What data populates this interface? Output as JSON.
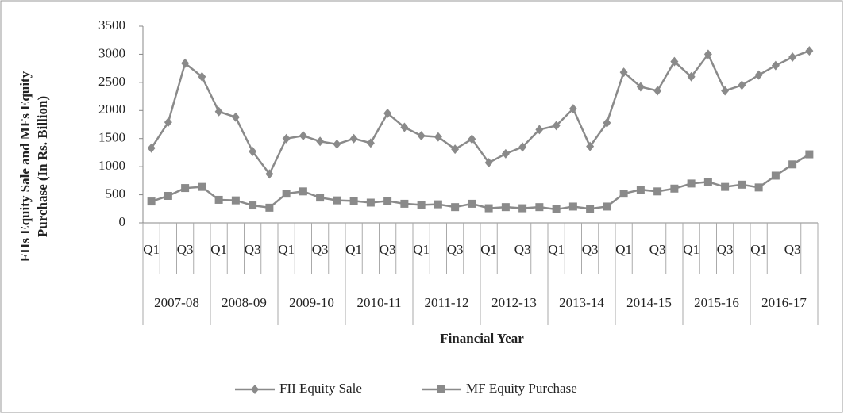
{
  "chart_data": {
    "type": "line",
    "ylabel": [
      "FIIs Equity Sale and MFs Equity",
      "Purchase (In Rs. Billion)"
    ],
    "xlabel": "Financial Year",
    "categories": [
      "Q1",
      null,
      "Q3",
      null,
      "Q1",
      null,
      "Q3",
      null,
      "Q1",
      null,
      "Q3",
      null,
      "Q1",
      null,
      "Q3",
      null,
      "Q1",
      null,
      "Q3",
      null,
      "Q1",
      null,
      "Q3",
      null,
      "Q1",
      null,
      "Q3",
      null,
      "Q1",
      null,
      "Q3",
      null,
      "Q1",
      null,
      "Q3",
      null,
      "Q1",
      null,
      "Q3",
      null
    ],
    "groups": [
      "2007-08",
      "2008-09",
      "2009-10",
      "2010-11",
      "2011-12",
      "2012-13",
      "2013-14",
      "2014-15",
      "2015-16",
      "2016-17"
    ],
    "series": [
      {
        "name": "FII Equity Sale",
        "color": "#8a8a8a",
        "marker": "diamond",
        "values": [
          1330,
          1790,
          2840,
          2600,
          1980,
          1880,
          1270,
          870,
          1500,
          1550,
          1450,
          1400,
          1500,
          1420,
          1950,
          1700,
          1550,
          1530,
          1310,
          1490,
          1070,
          1230,
          1350,
          1660,
          1730,
          2030,
          1360,
          1780,
          2680,
          2420,
          2350,
          2870,
          2600,
          3000,
          2350,
          2450,
          2630,
          2800,
          2950,
          3060
        ]
      },
      {
        "name": "MF Equity Purchase",
        "color": "#8a8a8a",
        "marker": "square",
        "values": [
          380,
          480,
          620,
          640,
          410,
          400,
          310,
          270,
          520,
          560,
          450,
          400,
          390,
          360,
          390,
          340,
          320,
          330,
          280,
          340,
          260,
          280,
          260,
          280,
          240,
          290,
          250,
          290,
          520,
          590,
          560,
          610,
          700,
          730,
          640,
          680,
          630,
          840,
          1040,
          1220
        ]
      }
    ],
    "ylim": [
      0,
      3500
    ],
    "yticks": [
      0,
      500,
      1000,
      1500,
      2000,
      2500,
      3000,
      3500
    ],
    "grid": false,
    "legend": "bottom"
  }
}
